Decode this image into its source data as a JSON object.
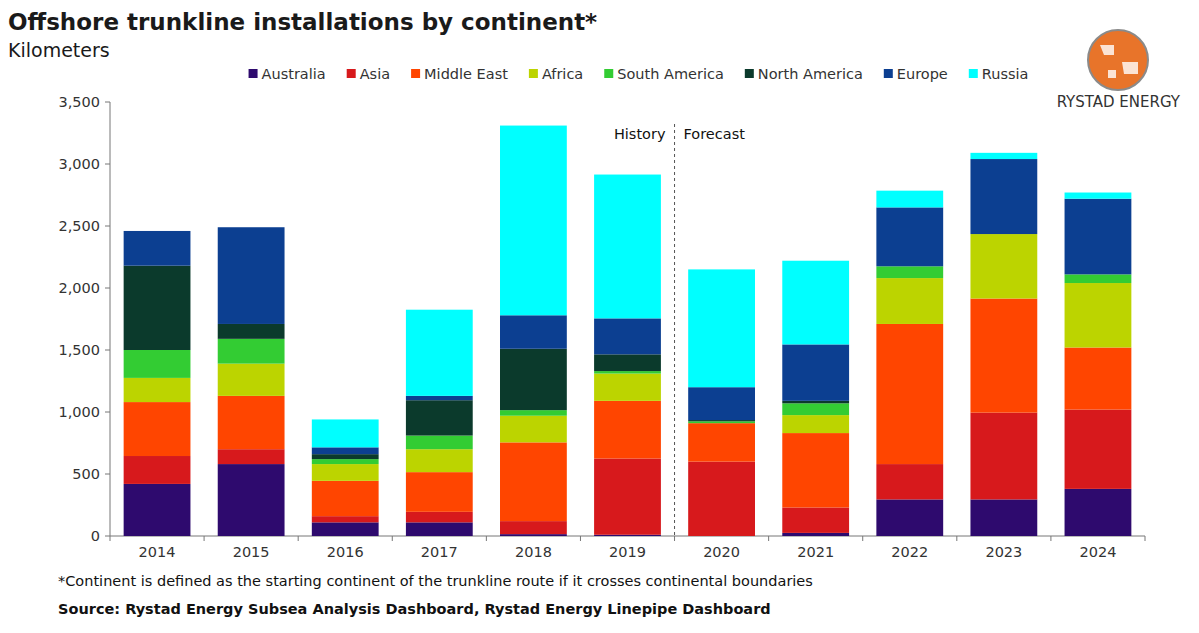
{
  "chart_data": {
    "type": "bar",
    "stacked": true,
    "grid": false,
    "legend": "top",
    "title": "Offshore trunkline installations by continent*",
    "subtitle": "Kilometers",
    "annotations": [
      "History",
      "Forecast"
    ],
    "footnote": "*Continent is defined as the starting continent of the trunkline route if it crosses continental boundaries",
    "source": "Source: Rystad Energy Subsea Analysis Dashboard, Rystad Energy Linepipe Dashboard",
    "brand": "RYSTAD ENERGY",
    "categories": [
      "2014",
      "2015",
      "2016",
      "2017",
      "2018",
      "2019",
      "2020",
      "2021",
      "2022",
      "2023",
      "2024"
    ],
    "ylim": [
      0,
      3500
    ],
    "yticks": [
      0,
      500,
      {
        "value": 1000,
        "label": "1,000"
      },
      {
        "value": 1500,
        "label": "1,500"
      },
      {
        "value": 2000,
        "label": "2,000"
      },
      {
        "value": 2500,
        "label": "2,500"
      },
      {
        "value": 3000,
        "label": "3,000"
      },
      {
        "value": 3500,
        "label": "3,500"
      }
    ],
    "series": [
      {
        "name": "Australia",
        "color": "#2e0a6e",
        "values": [
          420,
          580,
          110,
          110,
          15,
          10,
          0,
          25,
          295,
          295,
          380
        ]
      },
      {
        "name": "Asia",
        "color": "#d7191c",
        "values": [
          225,
          120,
          50,
          85,
          105,
          615,
          600,
          205,
          285,
          700,
          640
        ]
      },
      {
        "name": "Middle East",
        "color": "#ff4500",
        "values": [
          435,
          430,
          285,
          320,
          635,
          465,
          310,
          600,
          1130,
          920,
          500
        ]
      },
      {
        "name": "Africa",
        "color": "#bcd400",
        "values": [
          195,
          260,
          135,
          185,
          215,
          220,
          0,
          145,
          370,
          520,
          520
        ]
      },
      {
        "name": "South America",
        "color": "#33cc33",
        "values": [
          225,
          200,
          40,
          110,
          45,
          20,
          15,
          95,
          95,
          0,
          70
        ]
      },
      {
        "name": "North America",
        "color": "#0b3a2c",
        "values": [
          680,
          120,
          40,
          285,
          495,
          135,
          10,
          20,
          0,
          0,
          0
        ]
      },
      {
        "name": "Europe",
        "color": "#0c3f91",
        "values": [
          280,
          780,
          55,
          35,
          270,
          290,
          265,
          455,
          475,
          605,
          610
        ]
      },
      {
        "name": "Russia",
        "color": "#00ffff",
        "values": [
          0,
          0,
          225,
          695,
          1530,
          1160,
          950,
          675,
          135,
          50,
          50
        ]
      }
    ]
  }
}
